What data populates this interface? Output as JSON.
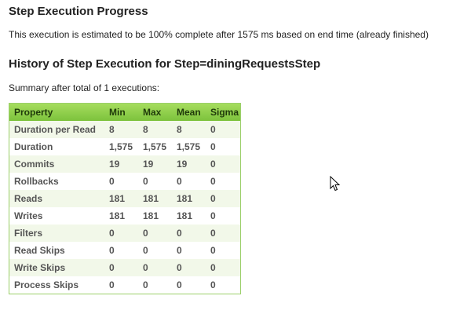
{
  "progress": {
    "heading": "Step Execution Progress",
    "text": "This execution is estimated to be 100% complete after 1575 ms based on end time (already finished)"
  },
  "history": {
    "heading": "History of Step Execution for Step=diningRequestsStep",
    "summary": "Summary after total of 1 executions:"
  },
  "table": {
    "headers": [
      "Property",
      "Min",
      "Max",
      "Mean",
      "Sigma"
    ],
    "rows": [
      {
        "property": "Duration per Read",
        "min": "8",
        "max": "8",
        "mean": "8",
        "sigma": "0"
      },
      {
        "property": "Duration",
        "min": "1,575",
        "max": "1,575",
        "mean": "1,575",
        "sigma": "0"
      },
      {
        "property": "Commits",
        "min": "19",
        "max": "19",
        "mean": "19",
        "sigma": "0"
      },
      {
        "property": "Rollbacks",
        "min": "0",
        "max": "0",
        "mean": "0",
        "sigma": "0"
      },
      {
        "property": "Reads",
        "min": "181",
        "max": "181",
        "mean": "181",
        "sigma": "0"
      },
      {
        "property": "Writes",
        "min": "181",
        "max": "181",
        "mean": "181",
        "sigma": "0"
      },
      {
        "property": "Filters",
        "min": "0",
        "max": "0",
        "mean": "0",
        "sigma": "0"
      },
      {
        "property": "Read Skips",
        "min": "0",
        "max": "0",
        "mean": "0",
        "sigma": "0"
      },
      {
        "property": "Write Skips",
        "min": "0",
        "max": "0",
        "mean": "0",
        "sigma": "0"
      },
      {
        "property": "Process Skips",
        "min": "0",
        "max": "0",
        "mean": "0",
        "sigma": "0"
      }
    ]
  },
  "colors": {
    "header_green": "#7cc23c",
    "row_alt": "#f2f8e9",
    "border": "#9bcf6a"
  },
  "cursor": {
    "icon": "mouse-pointer-icon"
  }
}
